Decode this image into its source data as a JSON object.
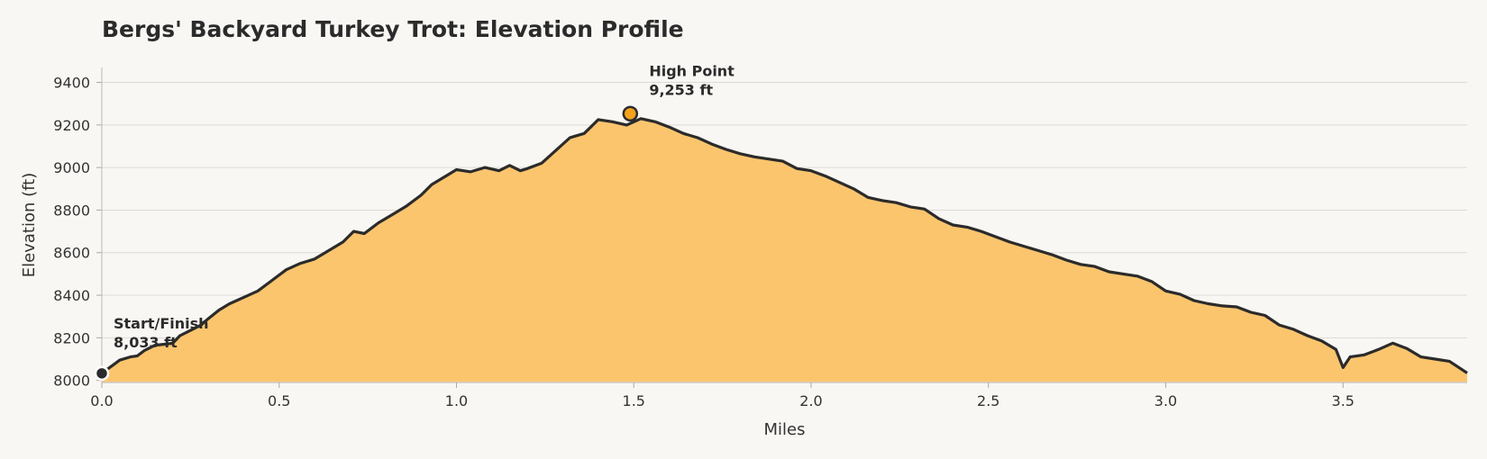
{
  "chart_data": {
    "type": "area",
    "title": "Bergs' Backyard Turkey Trot: Elevation Profile",
    "xlabel": "Miles",
    "ylabel": "Elevation (ft)",
    "xlim": [
      0,
      3.85
    ],
    "ylim": [
      7990,
      9470
    ],
    "xticks": [
      0.0,
      0.5,
      1.0,
      1.5,
      2.0,
      2.5,
      3.0,
      3.5
    ],
    "xtick_labels": [
      "0.0",
      "0.5",
      "1.0",
      "1.5",
      "2.0",
      "2.5",
      "3.0",
      "3.5"
    ],
    "yticks": [
      8000,
      8200,
      8400,
      8600,
      8800,
      9000,
      9200,
      9400
    ],
    "ytick_labels": [
      "8000",
      "8200",
      "8400",
      "8600",
      "8800",
      "9000",
      "9200",
      "9400"
    ],
    "grid": "horizontal",
    "colors": {
      "fill": "#fbc56e",
      "line": "#2b2b2b",
      "peak_marker": "#f4a21c",
      "start_marker": "#2b2b2b"
    },
    "series": [
      {
        "x": [
          0.0,
          0.03,
          0.05,
          0.08,
          0.1,
          0.12,
          0.15,
          0.18,
          0.2,
          0.22,
          0.25,
          0.28,
          0.3,
          0.33,
          0.36,
          0.4,
          0.44,
          0.48,
          0.52,
          0.56,
          0.6,
          0.64,
          0.68,
          0.71,
          0.74,
          0.78,
          0.82,
          0.86,
          0.9,
          0.93,
          0.96,
          1.0,
          1.04,
          1.08,
          1.12,
          1.15,
          1.18,
          1.2,
          1.24,
          1.28,
          1.32,
          1.36,
          1.4,
          1.44,
          1.48,
          1.52,
          1.56,
          1.6,
          1.64,
          1.68,
          1.72,
          1.76,
          1.8,
          1.84,
          1.88,
          1.92,
          1.96,
          2.0,
          2.04,
          2.08,
          2.12,
          2.16,
          2.2,
          2.24,
          2.28,
          2.32,
          2.36,
          2.4,
          2.44,
          2.48,
          2.52,
          2.56,
          2.6,
          2.64,
          2.68,
          2.72,
          2.76,
          2.8,
          2.84,
          2.88,
          2.92,
          2.96,
          3.0,
          3.04,
          3.08,
          3.12,
          3.16,
          3.2,
          3.24,
          3.28,
          3.32,
          3.36,
          3.4,
          3.44,
          3.48,
          3.5,
          3.52,
          3.56,
          3.6,
          3.64,
          3.68,
          3.72,
          3.76,
          3.8,
          3.85
        ],
        "y": [
          8033,
          8070,
          8095,
          8110,
          8115,
          8140,
          8165,
          8170,
          8175,
          8210,
          8235,
          8260,
          8290,
          8330,
          8360,
          8390,
          8420,
          8470,
          8520,
          8550,
          8570,
          8610,
          8650,
          8700,
          8690,
          8740,
          8780,
          8820,
          8870,
          8920,
          8950,
          8990,
          8980,
          9000,
          8985,
          9010,
          8985,
          8995,
          9020,
          9080,
          9140,
          9160,
          9225,
          9215,
          9200,
          9230,
          9215,
          9190,
          9160,
          9140,
          9110,
          9085,
          9065,
          9050,
          9040,
          9030,
          8995,
          8985,
          8960,
          8930,
          8900,
          8860,
          8845,
          8835,
          8815,
          8805,
          8760,
          8730,
          8720,
          8700,
          8675,
          8650,
          8630,
          8610,
          8590,
          8565,
          8545,
          8535,
          8510,
          8500,
          8490,
          8465,
          8420,
          8405,
          8375,
          8360,
          8350,
          8345,
          8320,
          8305,
          8260,
          8240,
          8210,
          8185,
          8145,
          8060,
          8110,
          8120,
          8145,
          8175,
          8150,
          8110,
          8100,
          8090,
          8035
        ]
      }
    ],
    "annotations": [
      {
        "kind": "peak",
        "x": 1.49,
        "y": 9253,
        "label": "High Point",
        "value_text": "9,253 ft"
      },
      {
        "kind": "start",
        "x": 0.0,
        "y": 8033,
        "label": "Start/Finish",
        "value_text": "8,033 ft"
      }
    ]
  }
}
